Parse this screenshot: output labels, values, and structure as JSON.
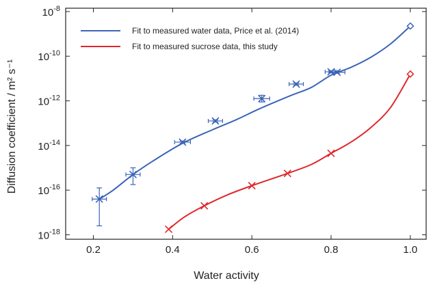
{
  "chart_data": {
    "type": "line",
    "xlabel": "Water activity",
    "ylabel": "Diffusion coefficient / m² s⁻¹",
    "xlim": [
      0.13,
      1.04
    ],
    "ylim_log10": [
      -18.2,
      -7.85
    ],
    "y_scale": "log",
    "x_ticks": [
      0.2,
      0.4,
      0.6,
      0.8,
      1.0
    ],
    "x_tick_labels": [
      "0.2",
      "0.4",
      "0.6",
      "0.8",
      "1.0"
    ],
    "y_ticks_log10": [
      -18,
      -16,
      -14,
      -12,
      -10,
      -8
    ],
    "y_tick_labels": [
      {
        "base": "10",
        "exp": "-18"
      },
      {
        "base": "10",
        "exp": "-16"
      },
      {
        "base": "10",
        "exp": "-14"
      },
      {
        "base": "10",
        "exp": "-12"
      },
      {
        "base": "10",
        "exp": "-10"
      },
      {
        "base": "10",
        "exp": "-8"
      }
    ],
    "legend_position": "top-left",
    "series": [
      {
        "name": "Fit to measured water data, Price et al. (2014)",
        "color": "#3a63b8",
        "line": [
          [
            0.215,
            -16.4
          ],
          [
            0.25,
            -16.0
          ],
          [
            0.3,
            -15.3
          ],
          [
            0.35,
            -14.7
          ],
          [
            0.425,
            -13.9
          ],
          [
            0.5,
            -13.3
          ],
          [
            0.56,
            -12.85
          ],
          [
            0.62,
            -12.35
          ],
          [
            0.7,
            -11.75
          ],
          [
            0.75,
            -11.4
          ],
          [
            0.8,
            -10.85
          ],
          [
            0.85,
            -10.5
          ],
          [
            0.9,
            -10.05
          ],
          [
            0.95,
            -9.45
          ],
          [
            1.0,
            -8.65
          ]
        ],
        "points": [
          {
            "x": 0.215,
            "y": -16.4,
            "xerr": 0.018,
            "ylow": -17.6,
            "yhigh": -15.9
          },
          {
            "x": 0.3,
            "y": -15.3,
            "xerr": 0.018,
            "ylow": -15.75,
            "yhigh": -15.0
          },
          {
            "x": 0.425,
            "y": -13.85,
            "xerr": 0.02,
            "ylow": -13.9,
            "yhigh": -13.8
          },
          {
            "x": 0.508,
            "y": -12.9,
            "xerr": 0.018,
            "ylow": -12.95,
            "yhigh": -12.85
          },
          {
            "x": 0.625,
            "y": -11.9,
            "xerr": 0.02,
            "ylow": -12.05,
            "yhigh": -11.75
          },
          {
            "x": 0.712,
            "y": -11.25,
            "xerr": 0.018,
            "ylow": -11.3,
            "yhigh": -11.2
          },
          {
            "x": 0.8,
            "y": -10.7,
            "xerr": 0.015,
            "ylow": -10.75,
            "yhigh": -10.65
          },
          {
            "x": 0.815,
            "y": -10.72,
            "xerr": 0.02,
            "ylow": -10.77,
            "yhigh": -10.67
          }
        ],
        "endpoint": {
          "x": 1.0,
          "y": -8.65,
          "marker": "diamond"
        }
      },
      {
        "name": "Fit to measured sucrose data, this study",
        "color": "#e0262b",
        "line": [
          [
            0.39,
            -17.75
          ],
          [
            0.43,
            -17.2
          ],
          [
            0.48,
            -16.7
          ],
          [
            0.54,
            -16.2
          ],
          [
            0.6,
            -15.8
          ],
          [
            0.69,
            -15.25
          ],
          [
            0.75,
            -14.85
          ],
          [
            0.8,
            -14.35
          ],
          [
            0.85,
            -13.85
          ],
          [
            0.9,
            -13.2
          ],
          [
            0.95,
            -12.3
          ],
          [
            1.0,
            -10.8
          ]
        ],
        "points": [
          {
            "x": 0.39,
            "y": -17.75
          },
          {
            "x": 0.48,
            "y": -16.7
          },
          {
            "x": 0.6,
            "y": -15.8
          },
          {
            "x": 0.69,
            "y": -15.25
          },
          {
            "x": 0.8,
            "y": -14.35
          }
        ],
        "endpoint": {
          "x": 1.0,
          "y": -10.8,
          "marker": "diamond"
        }
      }
    ]
  }
}
